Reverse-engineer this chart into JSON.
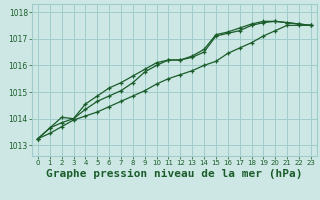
{
  "background_color": "#cde8e4",
  "grid_color": "#a0cccc",
  "line_color": "#1a5c2a",
  "title": "Graphe pression niveau de la mer (hPa)",
  "title_fontsize": 8,
  "ylabel_ticks": [
    1013,
    1014,
    1015,
    1016,
    1017,
    1018
  ],
  "xlim": [
    -0.5,
    23.5
  ],
  "ylim": [
    1012.6,
    1018.3
  ],
  "x": [
    0,
    1,
    2,
    3,
    4,
    5,
    6,
    7,
    8,
    9,
    10,
    11,
    12,
    13,
    14,
    15,
    16,
    17,
    18,
    19,
    20,
    21,
    22,
    23
  ],
  "series1": [
    1013.25,
    1013.65,
    1013.85,
    1014.0,
    1014.35,
    1014.65,
    1014.85,
    1015.05,
    1015.35,
    1015.75,
    1016.0,
    1016.2,
    1016.2,
    1016.3,
    1016.5,
    1017.1,
    1017.2,
    1017.3,
    1017.5,
    1017.6,
    1017.65,
    1017.6,
    1017.55,
    1017.5
  ],
  "series2": [
    1013.25,
    1013.65,
    1014.05,
    1014.0,
    1014.55,
    1014.85,
    1015.15,
    1015.35,
    1015.6,
    1015.85,
    1016.1,
    1016.2,
    1016.2,
    1016.35,
    1016.6,
    1017.15,
    1017.25,
    1017.4,
    1017.55,
    1017.65,
    1017.65,
    1017.6,
    1017.55,
    1017.5
  ],
  "series3": [
    1013.25,
    1013.45,
    1013.7,
    1013.95,
    1014.1,
    1014.25,
    1014.45,
    1014.65,
    1014.85,
    1015.05,
    1015.3,
    1015.5,
    1015.65,
    1015.8,
    1016.0,
    1016.15,
    1016.45,
    1016.65,
    1016.85,
    1017.1,
    1017.3,
    1017.5,
    1017.5,
    1017.5
  ]
}
